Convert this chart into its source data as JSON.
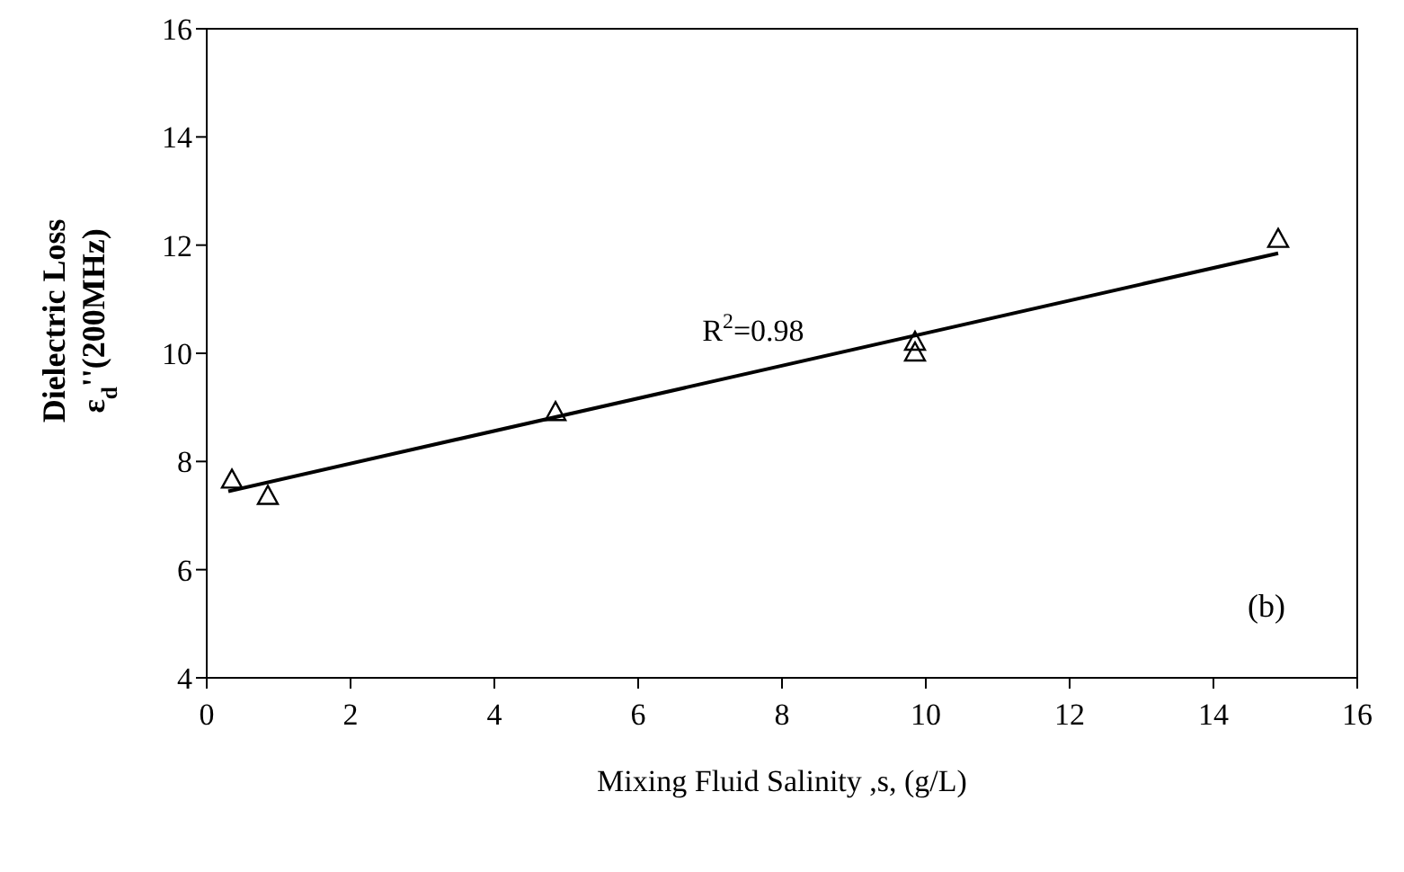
{
  "chart_data": {
    "type": "scatter",
    "xlabel": "Mixing Fluid Salinity ,s, (g/L)",
    "ylabel": "Dielectric Loss\nε$_{d}$''(200MHz)",
    "series": [
      {
        "type": "scatter",
        "color": "#000000",
        "marker": "triangle",
        "x": [
          0.35,
          0.85,
          4.85,
          9.85,
          9.85,
          14.9
        ],
        "values": [
          7.65,
          7.35,
          8.9,
          10.2,
          10.0,
          12.1
        ]
      },
      {
        "type": "line",
        "color": "#000000",
        "marker": "none",
        "line_style": "solid",
        "x": [
          0.3,
          14.9
        ],
        "values": [
          7.45,
          11.85
        ]
      }
    ],
    "xlim": [
      0,
      16
    ],
    "xticks": [
      0,
      2,
      4,
      6,
      8,
      10,
      12,
      14,
      16
    ],
    "ylim": [
      4,
      16
    ],
    "yticks": [
      4,
      6,
      8,
      10,
      12,
      14,
      16
    ],
    "annotations": [
      "R$^{2}$=0.98",
      "(b)"
    ]
  }
}
